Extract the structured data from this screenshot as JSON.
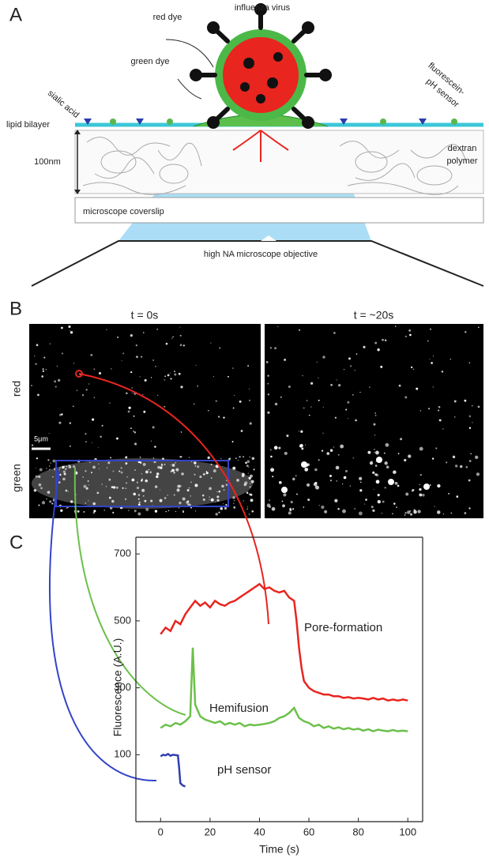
{
  "panel_labels": [
    "A",
    "B",
    "C"
  ],
  "diagram": {
    "virus": "influenza virus",
    "red_dye": "red dye",
    "green_dye": "green dye",
    "sialic_acid": "sialic acid",
    "ph_sensor": [
      "fluorescein-",
      "pH sensor"
    ],
    "lipid_bilayer": "lipid bilayer",
    "thickness": "100nm",
    "polymer": [
      "dextran",
      "polymer"
    ],
    "coverslip": "microscope coverslip",
    "objective": "high NA microscope objective"
  },
  "images": {
    "times": [
      "t = 0s",
      "t = ~20s"
    ],
    "channels": [
      "red",
      "green"
    ],
    "scale_bar": "5μm"
  },
  "chart_data": {
    "type": "line",
    "xlabel": "Time (s)",
    "ylabel": "Fluorescence (A.U.)",
    "xlim": [
      -10,
      106
    ],
    "ylim": [
      -100,
      750
    ],
    "xticks": [
      0,
      20,
      40,
      60,
      80,
      100
    ],
    "yticks": [
      100,
      300,
      500,
      700
    ],
    "series": [
      {
        "name": "Pore-formation",
        "color": "#e8251f",
        "x": [
          0,
          2,
          4,
          6,
          8,
          10,
          12,
          14,
          16,
          18,
          20,
          22,
          24,
          26,
          28,
          30,
          32,
          34,
          36,
          38,
          40,
          42,
          44,
          46,
          48,
          50,
          52,
          54,
          55,
          56,
          57,
          58,
          60,
          62,
          64,
          66,
          68,
          70,
          72,
          74,
          76,
          78,
          80,
          82,
          84,
          86,
          88,
          90,
          92,
          94,
          96,
          98,
          100
        ],
        "values": [
          460,
          480,
          470,
          500,
          490,
          520,
          540,
          560,
          545,
          555,
          540,
          560,
          550,
          545,
          555,
          560,
          570,
          580,
          590,
          600,
          610,
          595,
          600,
          590,
          585,
          590,
          570,
          560,
          500,
          420,
          360,
          320,
          300,
          290,
          285,
          280,
          280,
          275,
          275,
          270,
          272,
          268,
          270,
          268,
          265,
          270,
          265,
          268,
          262,
          265,
          262,
          265,
          262
        ]
      },
      {
        "name": "Hemifusion",
        "color": "#6cc04a",
        "x": [
          0,
          2,
          4,
          6,
          8,
          10,
          12,
          13,
          14,
          16,
          18,
          20,
          22,
          24,
          26,
          28,
          30,
          32,
          34,
          36,
          38,
          40,
          42,
          44,
          46,
          48,
          50,
          52,
          54,
          56,
          58,
          60,
          62,
          64,
          66,
          68,
          70,
          72,
          74,
          76,
          78,
          80,
          82,
          84,
          86,
          88,
          90,
          92,
          94,
          96,
          98,
          100
        ],
        "values": [
          180,
          190,
          185,
          195,
          190,
          200,
          215,
          420,
          250,
          215,
          205,
          200,
          195,
          200,
          190,
          195,
          190,
          195,
          185,
          190,
          188,
          190,
          192,
          195,
          200,
          210,
          215,
          225,
          240,
          210,
          200,
          195,
          185,
          190,
          180,
          185,
          178,
          182,
          176,
          180,
          175,
          178,
          172,
          176,
          170,
          175,
          172,
          170,
          174,
          170,
          172,
          170
        ]
      },
      {
        "name": "pH sensor",
        "color": "#2f3fb0",
        "x": [
          0,
          1,
          2,
          3,
          4,
          5,
          6,
          7,
          7.5,
          8,
          9,
          10
        ],
        "values": [
          95,
          100,
          98,
          102,
          97,
          100,
          99,
          98,
          60,
          15,
          8,
          5
        ]
      }
    ]
  }
}
